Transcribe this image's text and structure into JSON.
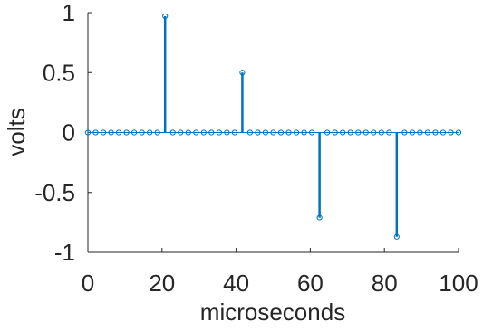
{
  "chart_data": {
    "type": "stem",
    "xlabel": "microseconds",
    "ylabel": "volts",
    "color": "#0072bd",
    "xlim": [
      0,
      100
    ],
    "xticks": [
      0,
      20,
      40,
      60,
      80,
      100
    ],
    "ylim": [
      -1,
      1
    ],
    "yticks": [
      -1,
      -0.5,
      0,
      0.5,
      1
    ],
    "x": [
      0,
      2.08,
      4.17,
      6.25,
      8.33,
      10.42,
      12.5,
      14.58,
      16.67,
      18.75,
      20.83,
      22.92,
      25,
      27.08,
      29.17,
      31.25,
      33.33,
      35.42,
      37.5,
      39.58,
      41.67,
      43.75,
      45.83,
      47.92,
      50,
      52.08,
      54.17,
      56.25,
      58.33,
      60.42,
      62.5,
      64.58,
      66.67,
      68.75,
      70.83,
      72.92,
      75,
      77.08,
      79.17,
      81.25,
      83.33,
      85.42,
      87.5,
      89.58,
      91.67,
      93.75,
      95.83,
      97.92,
      100
    ],
    "values": [
      0,
      0,
      0,
      0,
      0,
      0,
      0,
      0,
      0,
      0,
      0.97,
      0,
      0,
      0,
      0,
      0,
      0,
      0,
      0,
      0,
      0.5,
      0,
      0,
      0,
      0,
      0,
      0,
      0,
      0,
      0,
      -0.71,
      0,
      0,
      0,
      0,
      0,
      0,
      0,
      0,
      0,
      -0.87,
      0,
      0,
      0,
      0,
      0,
      0,
      0,
      0
    ]
  }
}
